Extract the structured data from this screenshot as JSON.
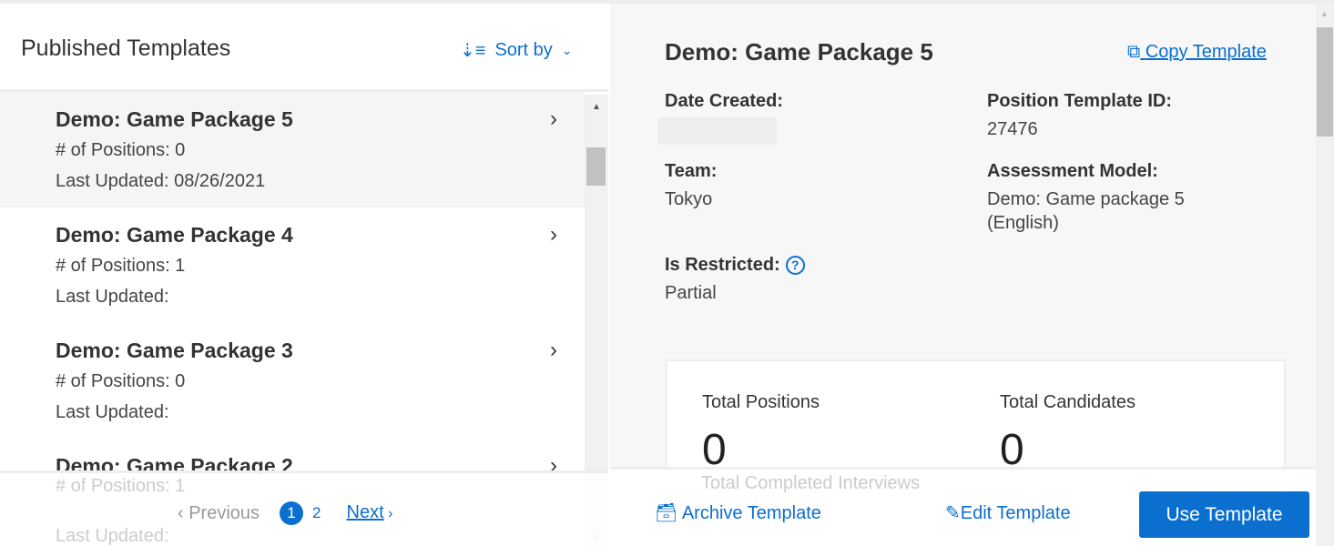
{
  "left": {
    "title": "Published Templates",
    "sort_label": "Sort by",
    "items": [
      {
        "title": "Demo: Game Package 5",
        "positions": "# of Positions: 0",
        "updated": "Last Updated: 08/26/2021"
      },
      {
        "title": "Demo: Game Package 4",
        "positions": "# of Positions: 1",
        "updated": "Last Updated:"
      },
      {
        "title": "Demo: Game Package 3",
        "positions": "# of Positions: 0",
        "updated": "Last Updated:"
      },
      {
        "title": "Demo: Game Package 2",
        "positions": "# of Positions: 1",
        "updated": "Last Updated:"
      }
    ],
    "pager": {
      "previous": "Previous",
      "pages": [
        "1",
        "2"
      ],
      "current": "1",
      "next": "Next"
    }
  },
  "detail": {
    "title": "Demo: Game Package 5",
    "copy": "Copy Template",
    "date_created_label": "Date Created:",
    "date_created": "",
    "template_id_label": "Position Template ID:",
    "template_id": "27476",
    "team_label": "Team:",
    "team": "Tokyo",
    "model_label": "Assessment Model:",
    "model_line1": "Demo: Game package 5",
    "model_line2": "(English)",
    "restricted_label": "Is Restricted:",
    "restricted": "Partial",
    "stats": {
      "positions_label": "Total Positions",
      "positions": "0",
      "candidates_label": "Total Candidates",
      "candidates": "0",
      "interviews_label": "Total Completed Interviews"
    }
  },
  "footer": {
    "archive": "Archive Template",
    "edit": "Edit Template",
    "use": "Use Template"
  },
  "colors": {
    "accent": "#0a6fcf"
  }
}
